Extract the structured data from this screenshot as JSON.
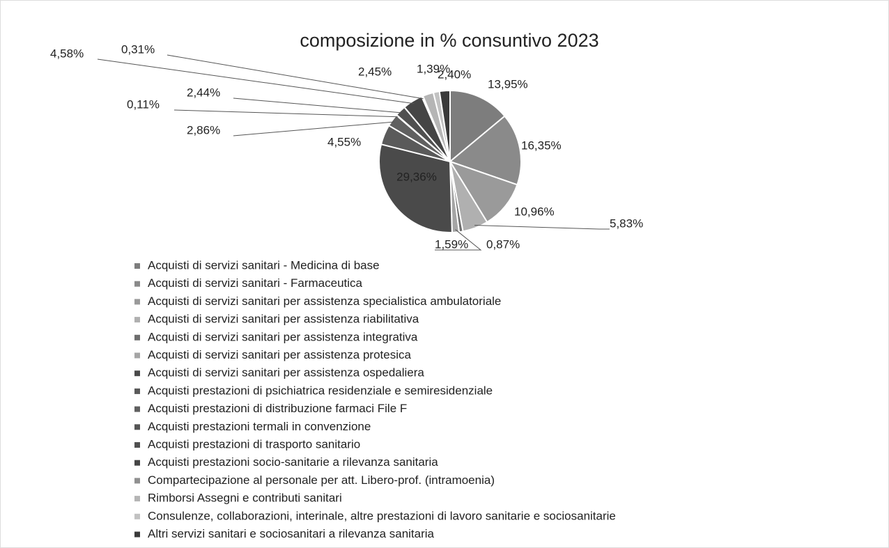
{
  "chart_data": {
    "type": "pie",
    "title": "composizione in % consuntivo 2023",
    "categories": [
      "Acquisti di servizi sanitari - Medicina di base",
      "Acquisti di servizi sanitari - Farmaceutica",
      "Acquisti di servizi sanitari per assistenza specialistica ambulatoriale",
      "Acquisti di servizi sanitari per assistenza riabilitativa",
      "Acquisti di servizi sanitari per assistenza integrativa",
      "Acquisti di servizi sanitari per assistenza protesica",
      "Acquisti di servizi sanitari per assistenza ospedaliera",
      "Acquisti prestazioni di psichiatrica residenziale e semiresidenziale",
      "Acquisti prestazioni di distribuzione farmaci File F",
      "Acquisti prestazioni termali in convenzione",
      "Acquisti prestazioni di trasporto sanitario",
      "Acquisti prestazioni  socio-sanitarie a rilevanza sanitaria",
      "Compartecipazione al personale per att. Libero-prof. (intramoenia)",
      "Rimborsi Assegni e contributi sanitari",
      "Consulenze, collaborazioni, interinale, altre prestazioni di lavoro sanitarie e sociosanitarie",
      "Altri servizi sanitari e sociosanitari a rilevanza sanitaria"
    ],
    "values": [
      13.95,
      16.35,
      10.96,
      5.83,
      0.87,
      1.59,
      29.36,
      4.55,
      2.86,
      0.11,
      2.44,
      4.58,
      0.31,
      2.45,
      1.39,
      2.4
    ],
    "value_labels": [
      "13,95%",
      "16,35%",
      "10,96%",
      "5,83%",
      "0,87%",
      "1,59%",
      "29,36%",
      "4,55%",
      "2,86%",
      "0,11%",
      "2,44%",
      "4,58%",
      "0,31%",
      "2,45%",
      "1,39%",
      "2,40%"
    ],
    "colors": [
      "#7d7d7d",
      "#8a8a8a",
      "#9a9a9a",
      "#b0b0b0",
      "#6e6e6e",
      "#a5a5a5",
      "#4a4a4a",
      "#5a5a5a",
      "#606060",
      "#555555",
      "#505050",
      "#454545",
      "#909090",
      "#b5b5b5",
      "#c2c2c2",
      "#3a3a3a"
    ],
    "legend": "bottom"
  }
}
